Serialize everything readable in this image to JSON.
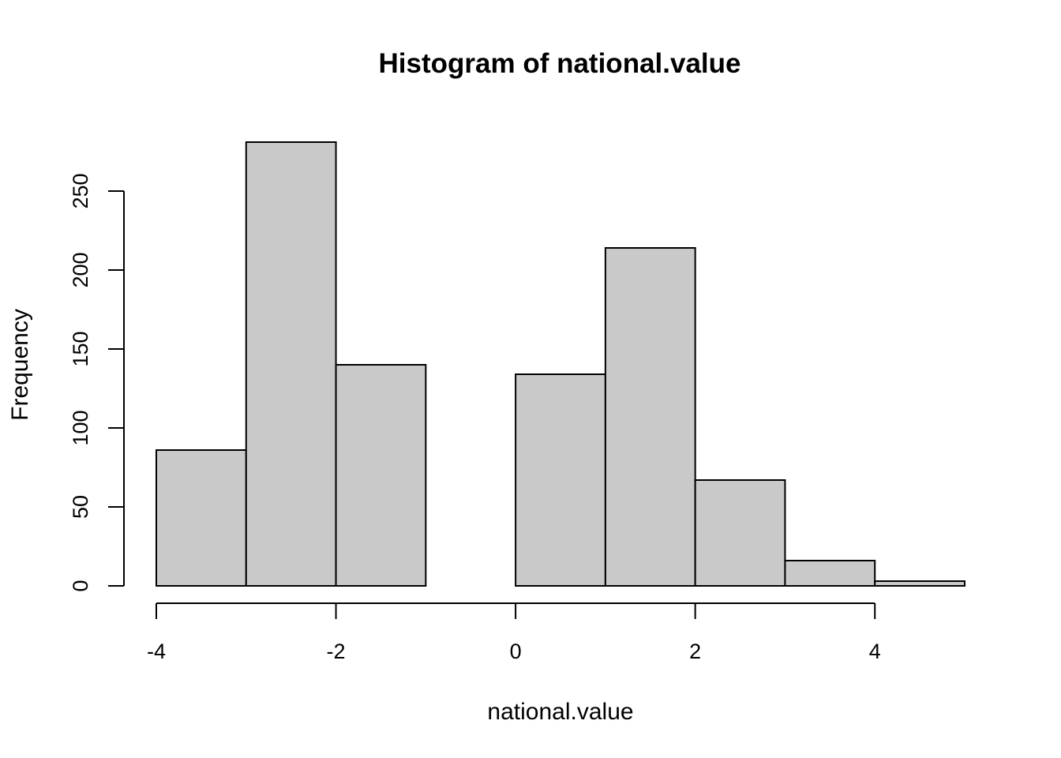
{
  "chart_data": {
    "type": "bar",
    "title": "Histogram of national.value",
    "xlabel": "national.value",
    "ylabel": "Frequency",
    "bins": [
      {
        "start": -4,
        "end": -3,
        "value": 86
      },
      {
        "start": -3,
        "end": -2,
        "value": 281
      },
      {
        "start": -2,
        "end": -1,
        "value": 140
      },
      {
        "start": -1,
        "end": 0,
        "value": 0
      },
      {
        "start": 0,
        "end": 1,
        "value": 134
      },
      {
        "start": 1,
        "end": 2,
        "value": 214
      },
      {
        "start": 2,
        "end": 3,
        "value": 67
      },
      {
        "start": 3,
        "end": 4,
        "value": 16
      },
      {
        "start": 4,
        "end": 5,
        "value": 3
      }
    ],
    "x_ticks": [
      -4,
      -2,
      0,
      2,
      4
    ],
    "y_ticks": [
      0,
      50,
      100,
      150,
      200,
      250
    ],
    "xlim": [
      -4,
      5
    ],
    "ylim": [
      0,
      281
    ],
    "bar_color": "#c9c9c9",
    "grid": false
  }
}
